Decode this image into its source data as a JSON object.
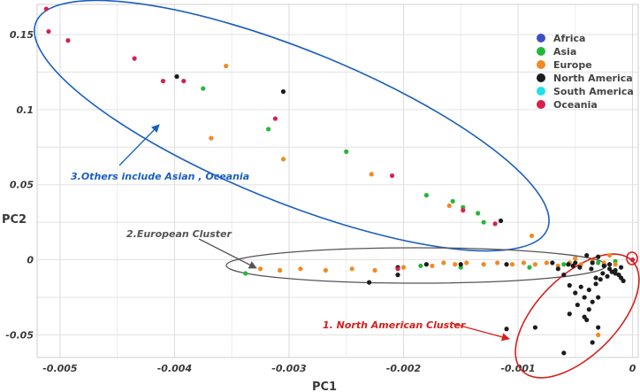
{
  "chart_data": {
    "type": "scatter",
    "xlabel": "PC1",
    "ylabel": "PC2",
    "xlim": [
      -0.0052,
      5e-05
    ],
    "ylim": [
      -0.065,
      0.17
    ],
    "xticks": [
      {
        "v": -0.005,
        "label": "-0.005"
      },
      {
        "v": -0.004,
        "label": "-0.004"
      },
      {
        "v": -0.003,
        "label": "-0.003"
      },
      {
        "v": -0.002,
        "label": "-0.002"
      },
      {
        "v": -0.001,
        "label": "-0.001"
      },
      {
        "v": 0,
        "label": "0"
      }
    ],
    "yticks": [
      {
        "v": -0.05,
        "label": "-0.05"
      },
      {
        "v": 0,
        "label": "0"
      },
      {
        "v": 0.05,
        "label": "0.05"
      },
      {
        "v": 0.1,
        "label": "0.1"
      },
      {
        "v": 0.15,
        "label": "0.15"
      }
    ],
    "grid": true,
    "legend_position": "top-right",
    "series": [
      {
        "name": "Africa",
        "color": "#3d4fc4",
        "points": []
      },
      {
        "name": "Asia",
        "color": "#22b83c",
        "points": [
          [
            -0.00375,
            0.114
          ],
          [
            -0.00318,
            0.087
          ],
          [
            -0.0025,
            0.072
          ],
          [
            -0.0018,
            0.043
          ],
          [
            -0.00157,
            0.039
          ],
          [
            -0.00148,
            0.035
          ],
          [
            -0.00135,
            0.031
          ],
          [
            -0.0013,
            0.025
          ],
          [
            -0.00338,
            -0.009
          ],
          [
            -0.00185,
            -0.004
          ],
          [
            -0.0015,
            -0.005
          ],
          [
            -0.0009,
            -0.005
          ],
          [
            -0.0006,
            -0.003
          ],
          [
            -0.0003,
            -0.002
          ],
          [
            -0.00015,
            -0.001
          ],
          [
            0.0,
            0.0
          ]
        ]
      },
      {
        "name": "Europe",
        "color": "#f08a24",
        "points": [
          [
            -0.00355,
            0.129
          ],
          [
            -0.00368,
            0.081
          ],
          [
            -0.00305,
            0.067
          ],
          [
            -0.00228,
            0.057
          ],
          [
            -0.0016,
            0.036
          ],
          [
            -0.00088,
            0.016
          ],
          [
            -0.00325,
            -0.006
          ],
          [
            -0.00308,
            -0.007
          ],
          [
            -0.0029,
            -0.006
          ],
          [
            -0.00268,
            -0.007
          ],
          [
            -0.00245,
            -0.006
          ],
          [
            -0.00225,
            -0.007
          ],
          [
            -0.002,
            -0.005
          ],
          [
            -0.00175,
            -0.004
          ],
          [
            -0.00165,
            -0.002
          ],
          [
            -0.00155,
            -0.003
          ],
          [
            -0.00145,
            -0.002
          ],
          [
            -0.0013,
            -0.003
          ],
          [
            -0.00118,
            -0.002
          ],
          [
            -0.00105,
            -0.003
          ],
          [
            -0.00095,
            -0.002
          ],
          [
            -0.00085,
            -0.003
          ],
          [
            -0.00075,
            -0.002
          ],
          [
            -0.00065,
            -0.004
          ],
          [
            -0.00055,
            -0.002
          ],
          [
            -0.00045,
            -0.003
          ],
          [
            -0.00035,
            -0.001
          ],
          [
            -0.00025,
            -0.002
          ],
          [
            -0.0002,
            0.003
          ],
          [
            -0.00015,
            -0.003
          ],
          [
            -0.0003,
            -0.05
          ],
          [
            -0.0005,
            0.001
          ]
        ]
      },
      {
        "name": "North America",
        "color": "#1c1c1c",
        "points": [
          [
            -0.00398,
            0.122
          ],
          [
            -0.00305,
            0.112
          ],
          [
            -0.00115,
            0.026
          ],
          [
            -0.00205,
            -0.005
          ],
          [
            -0.0023,
            -0.015
          ],
          [
            -0.00205,
            -0.01
          ],
          [
            -0.0018,
            -0.003
          ],
          [
            -0.0015,
            -0.003
          ],
          [
            -0.0011,
            -0.003
          ],
          [
            -0.0007,
            -0.002
          ],
          [
            -0.0005,
            -0.002
          ],
          [
            -0.0004,
            0.003
          ],
          [
            -0.00035,
            -0.002
          ],
          [
            -0.0003,
            0.002
          ],
          [
            -0.00025,
            -0.004
          ],
          [
            -0.0002,
            -0.006
          ],
          [
            -0.00018,
            -0.008
          ],
          [
            -0.00015,
            -0.009
          ],
          [
            -0.00012,
            -0.01
          ],
          [
            -0.0001,
            -0.012
          ],
          [
            -8e-05,
            -0.014
          ],
          [
            -0.00022,
            -0.011
          ],
          [
            -0.00028,
            -0.013
          ],
          [
            -0.00032,
            -0.016
          ],
          [
            -0.00038,
            -0.02
          ],
          [
            -0.00042,
            -0.025
          ],
          [
            -0.00048,
            -0.03
          ],
          [
            -0.00055,
            -0.036
          ],
          [
            -0.0004,
            -0.04
          ],
          [
            -0.0003,
            -0.045
          ],
          [
            -0.00035,
            -0.055
          ],
          [
            -0.0006,
            -0.062
          ],
          [
            -0.00085,
            -0.045
          ],
          [
            -0.0011,
            -0.046
          ],
          [
            -0.00055,
            -0.017
          ],
          [
            -0.0006,
            -0.01
          ],
          [
            -0.00065,
            -0.006
          ],
          [
            -0.0002,
            -0.003
          ],
          [
            -0.0001,
            -0.005
          ],
          [
            -0.00015,
            -0.007
          ],
          [
            -0.00026,
            -0.009
          ],
          [
            -0.00032,
            -0.012
          ],
          [
            -0.00045,
            -0.018
          ],
          [
            -0.0005,
            -0.022
          ],
          [
            -0.0003,
            -0.025
          ],
          [
            -0.00035,
            -0.028
          ],
          [
            -0.00038,
            -0.033
          ],
          [
            -0.00042,
            -0.038
          ],
          [
            -0.00052,
            -0.004
          ],
          [
            -0.00056,
            -0.003
          ],
          [
            -0.00046,
            -0.005
          ],
          [
            -0.00036,
            -0.006
          ]
        ]
      },
      {
        "name": "South America",
        "color": "#20e0e8",
        "points": []
      },
      {
        "name": "Oceania",
        "color": "#d6204e",
        "points": [
          [
            -0.00512,
            0.167
          ],
          [
            -0.0051,
            0.152
          ],
          [
            -0.00493,
            0.146
          ],
          [
            -0.00435,
            0.134
          ],
          [
            -0.0041,
            0.119
          ],
          [
            -0.00392,
            0.119
          ],
          [
            -0.00312,
            0.094
          ],
          [
            -0.0021,
            0.056
          ],
          [
            -0.00148,
            0.033
          ],
          [
            -0.0012,
            0.024
          ],
          [
            -0.00205,
            -0.006
          ],
          [
            0.0,
            0.0
          ]
        ]
      }
    ],
    "annotations": [
      {
        "text": "1. North American Cluster",
        "color": "#d6201c"
      },
      {
        "text": "2.European Cluster",
        "color": "#555555"
      },
      {
        "text": "3.Others include Asian , Oceania",
        "color": "#1b5fc1"
      }
    ]
  }
}
